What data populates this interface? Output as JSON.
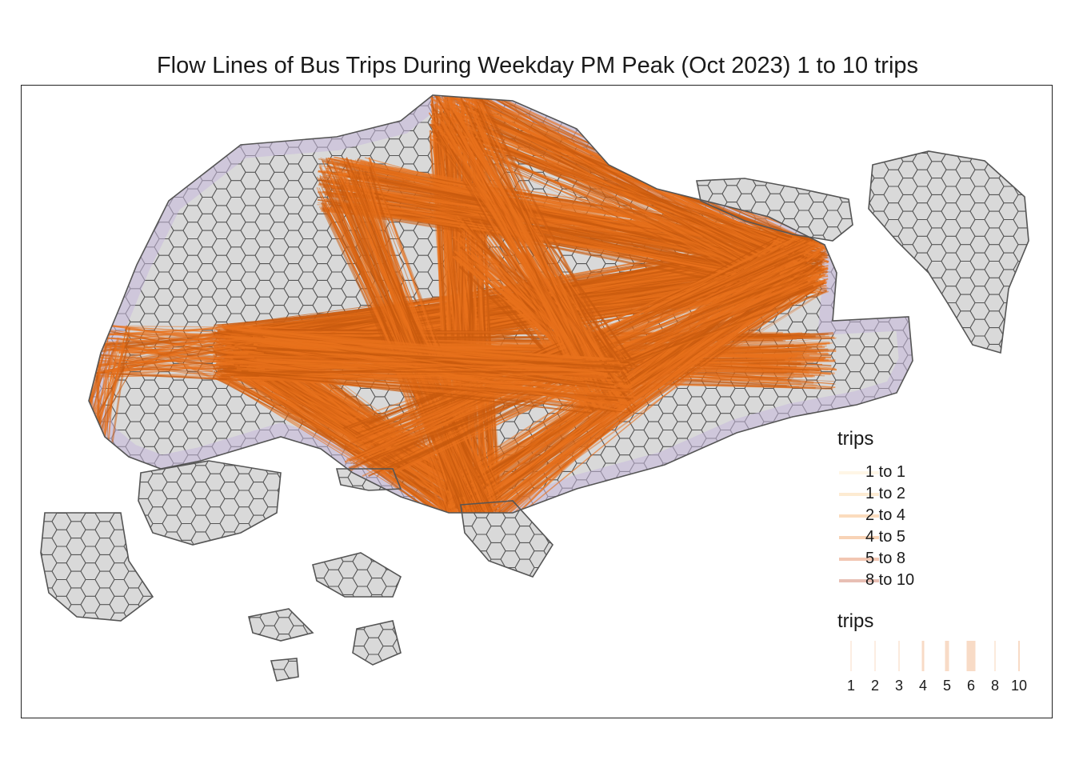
{
  "title": "Flow Lines of Bus Trips During Weekday PM Peak (Oct 2023) 1 to 10 trips",
  "colors": {
    "land": "#d9d9d9",
    "hex_border": "#555555",
    "origin_hex": "#c7b8dc",
    "flow": "#e8711c",
    "flow_dark": "#c85a0e"
  },
  "legend_color": {
    "title": "trips",
    "items": [
      {
        "label": "1 to 1",
        "color": "#fff6e6"
      },
      {
        "label": "1 to 2",
        "color": "#fdebd2"
      },
      {
        "label": "2 to 4",
        "color": "#fbdcbd"
      },
      {
        "label": "4 to 5",
        "color": "#f8d3b6"
      },
      {
        "label": "5 to 8",
        "color": "#f2c6b2"
      },
      {
        "label": "8 to 10",
        "color": "#e8bfb4"
      }
    ]
  },
  "legend_width": {
    "title": "trips",
    "items": [
      {
        "label": "1",
        "width": 1
      },
      {
        "label": "2",
        "width": 1
      },
      {
        "label": "3",
        "width": 1.2
      },
      {
        "label": "4",
        "width": 3
      },
      {
        "label": "5",
        "width": 5
      },
      {
        "label": "6",
        "width": 11
      },
      {
        "label": "8",
        "width": 1.2
      },
      {
        "label": "10",
        "width": 2
      }
    ]
  }
}
